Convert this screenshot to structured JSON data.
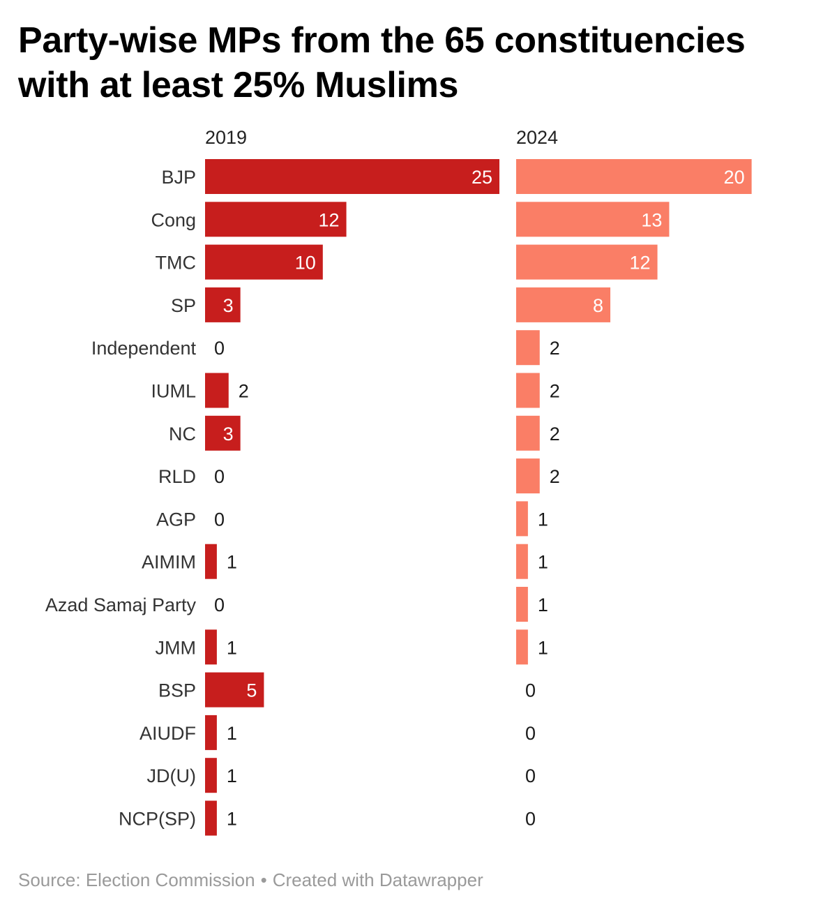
{
  "title": "Party-wise MPs from the 65 constituencies with at least 25% Muslims",
  "footer": {
    "source": "Source: Election Commission",
    "separator": "•",
    "credit": "Created with Datawrapper"
  },
  "colors": {
    "series_2019": "#c71e1d",
    "series_2024": "#fa7e66",
    "label_inside": "#ffffff",
    "label_outside": "#1a1a1a",
    "category_text": "#333333"
  },
  "chart_data": {
    "type": "bar",
    "orientation": "horizontal",
    "layout": "small-multiples",
    "categories": [
      "BJP",
      "Cong",
      "TMC",
      "SP",
      "Independent",
      "IUML",
      "NC",
      "RLD",
      "AGP",
      "AIMIM",
      "Azad Samaj Party",
      "JMM",
      "BSP",
      "AIUDF",
      "JD(U)",
      "NCP(SP)"
    ],
    "series": [
      {
        "name": "2019",
        "values": [
          25,
          12,
          10,
          3,
          0,
          2,
          3,
          0,
          0,
          1,
          0,
          1,
          5,
          1,
          1,
          1
        ]
      },
      {
        "name": "2024",
        "values": [
          20,
          13,
          12,
          8,
          2,
          2,
          2,
          2,
          1,
          1,
          1,
          1,
          0,
          0,
          0,
          0
        ]
      }
    ],
    "xlim": [
      0,
      25
    ],
    "grid": false,
    "legend": "none",
    "data_labels": true
  }
}
